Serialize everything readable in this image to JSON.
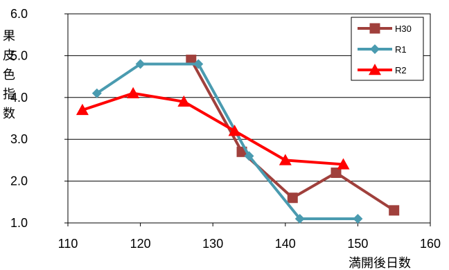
{
  "chart_data": {
    "type": "line",
    "xlabel": "満開後日数",
    "ylabel": "果皮色指数",
    "xlim": [
      110,
      160
    ],
    "ylim": [
      1.0,
      6.0
    ],
    "x_ticks": [
      "110",
      "120",
      "130",
      "140",
      "150",
      "160"
    ],
    "y_ticks": [
      "1.0",
      "2.0",
      "3.0",
      "4.0",
      "5.0",
      "6.0"
    ],
    "grid": true,
    "legend_position": "top-right",
    "series": [
      {
        "name": "H30",
        "color": "#a0403c",
        "marker": "square",
        "points": [
          [
            127,
            4.9
          ],
          [
            134,
            2.7
          ],
          [
            141,
            1.6
          ],
          [
            147,
            2.2
          ],
          [
            155,
            1.3
          ]
        ]
      },
      {
        "name": "R1",
        "color": "#4a9bb0",
        "marker": "diamond",
        "points": [
          [
            114,
            4.1
          ],
          [
            120,
            4.8
          ],
          [
            128,
            4.8
          ],
          [
            135,
            2.6
          ],
          [
            142,
            1.1
          ],
          [
            150,
            1.1
          ]
        ]
      },
      {
        "name": "R2",
        "color": "#ff0000",
        "marker": "triangle",
        "points": [
          [
            112,
            3.7
          ],
          [
            119,
            4.1
          ],
          [
            126,
            3.9
          ],
          [
            133,
            3.2
          ],
          [
            140,
            2.5
          ],
          [
            148,
            2.4
          ]
        ]
      }
    ]
  }
}
